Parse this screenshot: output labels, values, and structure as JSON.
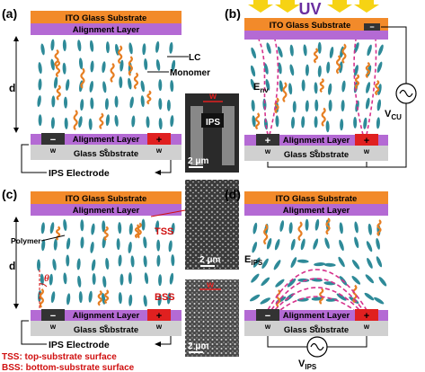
{
  "panel_a": {
    "label": "(a)",
    "top_substrate": "ITO Glass Substrate",
    "top_alignment": "Alignment Layer",
    "bottom_alignment": "Alignment Layer",
    "bottom_substrate": "Glass Substrate",
    "lc_label": "LC",
    "monomer_label": "Monomer",
    "d_label": "d",
    "w_left": "w",
    "s": "s",
    "w_right": "w",
    "electrode_label": "IPS Electrode"
  },
  "inset_top": {
    "w_label": "w",
    "ips_label": "IPS",
    "scale_label": "2 μm"
  },
  "panel_b": {
    "label": "(b)",
    "uv_label": "UV",
    "top_substrate": "ITO Glass Substrate",
    "bottom_alignment": "Alignment Layer",
    "bottom_substrate": "Glass Substrate",
    "field_label": "E",
    "field_sub": "nv",
    "voltage_label": "V",
    "voltage_sub": "CU",
    "w_left": "w",
    "s": "s",
    "w_right": "w"
  },
  "panel_c": {
    "label": "(c)",
    "top_substrate": "ITO Glass Substrate",
    "top_alignment": "Alignment Layer",
    "bottom_alignment": "Alignment Layer",
    "bottom_substrate": "Glass Substrate",
    "polymer_label": "Polymer",
    "d_label": "d",
    "theta_label": "θ",
    "tss_label": "TSS",
    "bss_label": "BSS",
    "w_left": "w",
    "s": "s",
    "w_right": "w",
    "electrode_label": "IPS Electrode",
    "footnote_tss": "TSS: top-substrate surface",
    "footnote_bss": "BSS: bottom-substrate surface"
  },
  "inset_mid": {
    "scale_label": "2 μm"
  },
  "inset_bottom": {
    "w_label": "w",
    "scale_label": "2 μm"
  },
  "panel_d": {
    "label": "(d)",
    "top_substrate": "ITO Glass Substrate",
    "top_alignment": "Alignment Layer",
    "bottom_alignment": "Alignment Layer",
    "bottom_substrate": "Glass Substrate",
    "field_label": "E",
    "field_sub": "IPS",
    "voltage_label": "V",
    "voltage_sub": "IPS",
    "w_left": "w",
    "s": "s",
    "w_right": "w"
  },
  "colors": {
    "ito": "#f28a2a",
    "alignment": "#b46ad4",
    "glass": "#d0d0d0",
    "lc_molecule": "#2e8a98",
    "monomer": "#e67e22",
    "field_line": "#d6318c",
    "electrode": "#e02020",
    "uv": "#f6d314",
    "uv_text": "#6a2ea0",
    "footnote": "#d01010"
  }
}
